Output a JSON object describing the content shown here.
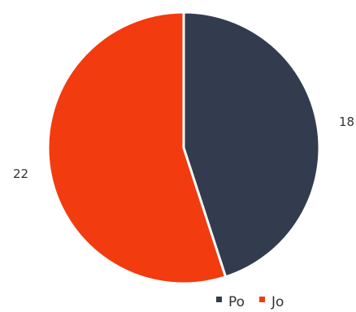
{
  "chart_data": {
    "type": "pie",
    "title": "",
    "series": [
      {
        "name": "",
        "slices": [
          {
            "label": "Po",
            "value": 18,
            "display": "18",
            "color": "#323c4e"
          },
          {
            "label": "Jo",
            "value": 22,
            "display": "22",
            "color": "#f23b0f"
          }
        ]
      }
    ],
    "start_angle_deg": 0,
    "direction": "clockwise",
    "slice_border_color": "#ffffff",
    "legend": {
      "position": "bottom-right",
      "entries": [
        "Po",
        "Jo"
      ]
    }
  }
}
